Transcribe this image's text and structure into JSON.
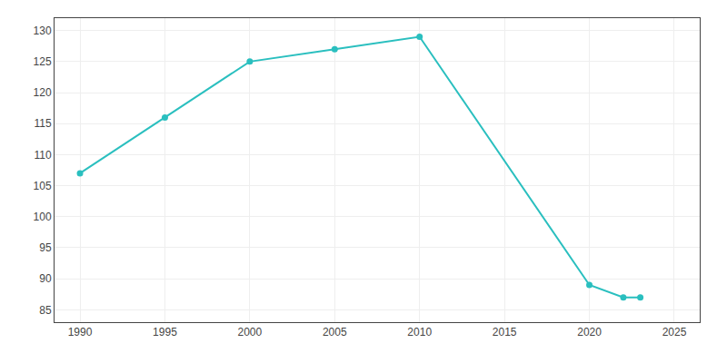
{
  "chart_data": {
    "type": "line",
    "x": [
      1990,
      1995,
      2000,
      2005,
      2010,
      2020,
      2022,
      2023
    ],
    "values": [
      107,
      116,
      125,
      127,
      129,
      89,
      87,
      87
    ],
    "color": "#2ABFBF",
    "marker": "circle",
    "line_style": "solid",
    "xlim": [
      1988.5,
      2026.5
    ],
    "ylim": [
      83,
      132
    ],
    "xticks": [
      1990,
      1995,
      2000,
      2005,
      2010,
      2015,
      2020,
      2025
    ],
    "yticks": [
      85,
      90,
      95,
      100,
      105,
      110,
      115,
      120,
      125,
      130
    ],
    "grid": true
  }
}
